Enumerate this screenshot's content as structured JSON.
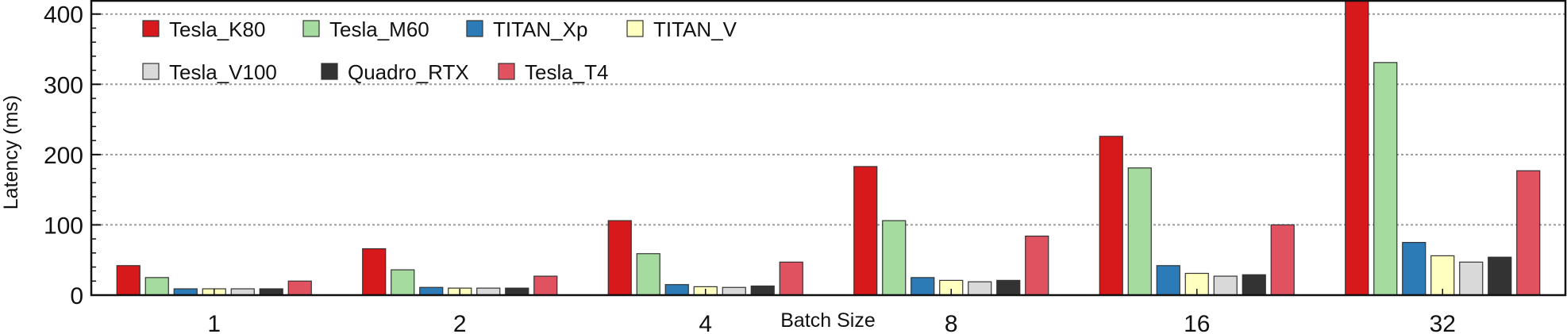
{
  "chart_data": {
    "type": "bar",
    "xlabel": "Batch Size",
    "ylabel": "Latency (ms)",
    "ylim": [
      0,
      420
    ],
    "yticks": [
      0,
      100,
      200,
      300,
      400
    ],
    "grid": "horizontal dotted",
    "legend_position": "top-left",
    "categories": [
      "1",
      "2",
      "4",
      "8",
      "16",
      "32"
    ],
    "series": [
      {
        "name": "Tesla_K80",
        "color": "#d7191c",
        "values": [
          42,
          66,
          106,
          183,
          226,
          420
        ]
      },
      {
        "name": "Tesla_M60",
        "color": "#a6dba0",
        "values": [
          25,
          36,
          59,
          106,
          181,
          331
        ]
      },
      {
        "name": "TITAN_Xp",
        "color": "#2c7bb6",
        "values": [
          9,
          11,
          15,
          25,
          42,
          75
        ]
      },
      {
        "name": "TITAN_V",
        "color": "#ffffbf",
        "values": [
          9,
          10,
          12,
          21,
          31,
          56
        ]
      },
      {
        "name": "Tesla_V100",
        "color": "#d9d9d9",
        "values": [
          9,
          10,
          11,
          19,
          27,
          47
        ]
      },
      {
        "name": "Quadro_RTX",
        "color": "#333333",
        "values": [
          9,
          10,
          13,
          21,
          29,
          54
        ]
      },
      {
        "name": "Tesla_T4",
        "color": "#e05260",
        "values": [
          20,
          27,
          47,
          84,
          100,
          177
        ]
      }
    ]
  }
}
